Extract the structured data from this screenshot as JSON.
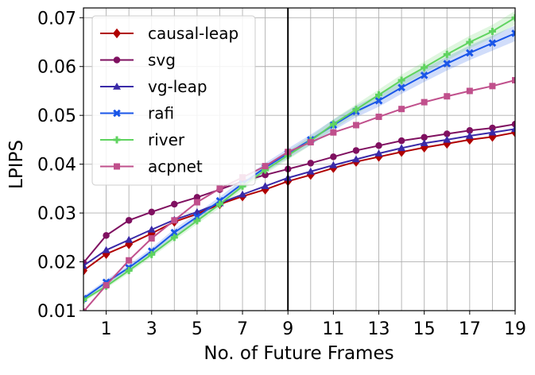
{
  "chart_data": {
    "type": "line",
    "title": "",
    "xlabel": "No. of Future Frames",
    "ylabel": "LPIPS",
    "xlim": [
      0,
      19
    ],
    "ylim": [
      0.01,
      0.072
    ],
    "xticks": [
      1,
      3,
      5,
      7,
      9,
      11,
      13,
      15,
      17,
      19
    ],
    "yticks": [
      0.01,
      0.02,
      0.03,
      0.04,
      0.05,
      0.06,
      0.07
    ],
    "ytick_labels": [
      "0.01",
      "0.02",
      "0.03",
      "0.04",
      "0.05",
      "0.06",
      "0.07"
    ],
    "grid": true,
    "legend_position": "upper-left",
    "vertical_line": 9,
    "x": [
      0,
      1,
      2,
      3,
      4,
      5,
      6,
      7,
      8,
      9,
      10,
      11,
      12,
      13,
      14,
      15,
      16,
      17,
      18,
      19
    ],
    "series": [
      {
        "name": "causal-leap",
        "color": "#b00000",
        "marker": "diamond",
        "values": [
          0.0182,
          0.0216,
          0.0236,
          0.0258,
          0.0282,
          0.0298,
          0.0318,
          0.0334,
          0.0348,
          0.0365,
          0.0378,
          0.0392,
          0.0405,
          0.0415,
          0.0425,
          0.0434,
          0.0442,
          0.045,
          0.0456,
          0.0465
        ]
      },
      {
        "name": "svg",
        "color": "#7f1060",
        "marker": "circle",
        "values": [
          0.0198,
          0.0254,
          0.0285,
          0.0302,
          0.0318,
          0.0332,
          0.0348,
          0.0365,
          0.0378,
          0.039,
          0.0402,
          0.0415,
          0.0428,
          0.0438,
          0.0448,
          0.0455,
          0.0462,
          0.0469,
          0.0474,
          0.0482
        ]
      },
      {
        "name": "vg-leap",
        "color": "#3a2aa8",
        "marker": "triangle",
        "values": [
          0.0192,
          0.0224,
          0.0245,
          0.0266,
          0.0286,
          0.0302,
          0.032,
          0.0338,
          0.0355,
          0.0372,
          0.0385,
          0.0398,
          0.041,
          0.0422,
          0.0433,
          0.0443,
          0.045,
          0.0458,
          0.0465,
          0.0472
        ]
      },
      {
        "name": "rafi",
        "color": "#1a56e8",
        "marker": "x",
        "values": [
          0.0125,
          0.0158,
          0.0188,
          0.0222,
          0.026,
          0.0292,
          0.0325,
          0.036,
          0.0393,
          0.0422,
          0.045,
          0.048,
          0.0508,
          0.053,
          0.0557,
          0.0582,
          0.0606,
          0.0628,
          0.0648,
          0.0668
        ]
      },
      {
        "name": "river",
        "color": "#5fd35f",
        "marker": "plus",
        "values": [
          0.0122,
          0.015,
          0.0182,
          0.0215,
          0.025,
          0.0284,
          0.0318,
          0.0355,
          0.0388,
          0.0418,
          0.0448,
          0.0482,
          0.0512,
          0.0542,
          0.0572,
          0.0598,
          0.0625,
          0.065,
          0.0672,
          0.07
        ]
      },
      {
        "name": "acpnet",
        "color": "#c0508c",
        "marker": "square",
        "values": [
          0.0098,
          0.0152,
          0.0203,
          0.0248,
          0.0285,
          0.0322,
          0.035,
          0.0373,
          0.0396,
          0.0425,
          0.0445,
          0.0465,
          0.048,
          0.0497,
          0.0513,
          0.0527,
          0.0539,
          0.055,
          0.056,
          0.0572
        ]
      }
    ]
  }
}
